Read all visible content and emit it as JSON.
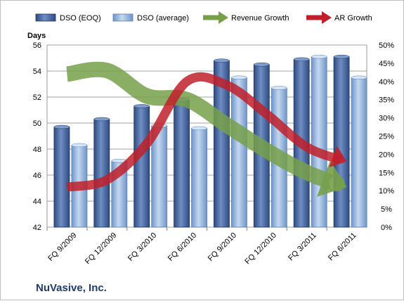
{
  "company": "NuVasive, Inc.",
  "chart_data": {
    "type": "bar",
    "categories": [
      "FQ 9/2009",
      "FQ 12/2009",
      "FQ 3/2010",
      "FQ 6/2010",
      "FQ 9/2010",
      "FQ 12/2010",
      "FQ 3/2011",
      "FQ 6/2011"
    ],
    "ylabel": "Days",
    "ylim": [
      42,
      56
    ],
    "yticks": [
      42,
      44,
      46,
      48,
      50,
      52,
      54,
      56
    ],
    "y2lim": [
      0,
      0.5
    ],
    "y2ticks": [
      "0%",
      "5%",
      "10%",
      "15%",
      "20%",
      "25%",
      "30%",
      "35%",
      "40%",
      "45%",
      "50%"
    ],
    "grid": true,
    "legend_position": "top",
    "series": [
      {
        "name": "DSO (EOQ)",
        "kind": "bar",
        "axis": "left",
        "color": "#4f6fa8",
        "values": [
          49.7,
          50.3,
          51.3,
          51.8,
          54.8,
          54.5,
          54.9,
          55.1
        ]
      },
      {
        "name": "DSO (average)",
        "kind": "bar",
        "axis": "left",
        "color": "#8fb1dc",
        "values": [
          48.3,
          47.1,
          49.8,
          49.6,
          53.5,
          52.7,
          55.1,
          53.5
        ]
      },
      {
        "name": "Revenue Growth",
        "kind": "arrow-line",
        "axis": "right",
        "color": "#77a04a",
        "values": [
          0.42,
          0.43,
          0.36,
          0.35,
          0.28,
          0.21,
          0.15,
          0.11
        ]
      },
      {
        "name": "AR Growth",
        "kind": "arrow-line",
        "axis": "right",
        "color": "#c0202a",
        "values": [
          0.11,
          0.13,
          0.23,
          0.4,
          0.39,
          0.31,
          0.22,
          0.18
        ]
      }
    ]
  }
}
